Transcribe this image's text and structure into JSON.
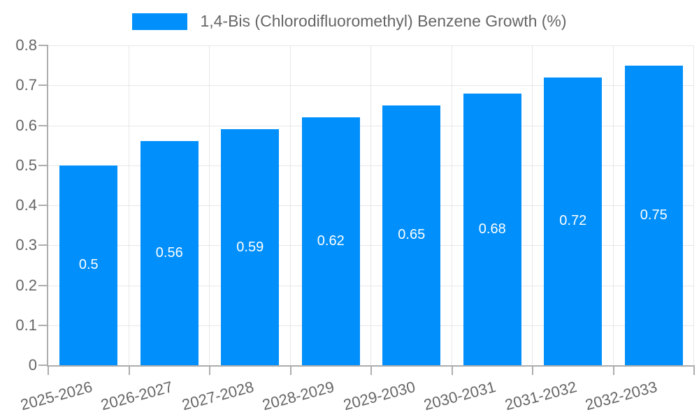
{
  "chart_data": {
    "type": "bar",
    "title": "1,4-Bis (Chlorodifluoromethyl) Benzene Growth (%)",
    "legend": {
      "label": "1,4-Bis (Chlorodifluoromethyl) Benzene Growth (%)",
      "marker_shape": "rect",
      "position": "top-center"
    },
    "categories": [
      "2025-2026",
      "2026-2027",
      "2027-2028",
      "2028-2029",
      "2029-2030",
      "2030-2031",
      "2031-2032",
      "2032-2033"
    ],
    "series": [
      {
        "name": "1,4-Bis (Chlorodifluoromethyl) Benzene Growth (%)",
        "values": [
          0.5,
          0.56,
          0.59,
          0.62,
          0.65,
          0.68,
          0.72,
          0.75
        ]
      }
    ],
    "value_labels": [
      "0.5",
      "0.56",
      "0.59",
      "0.62",
      "0.65",
      "0.68",
      "0.72",
      "0.75"
    ],
    "xlabel": "",
    "ylabel": "",
    "ylim": [
      0,
      0.8
    ],
    "ytick_step": 0.1,
    "ytick_labels": [
      "0",
      "0.1",
      "0.2",
      "0.3",
      "0.4",
      "0.5",
      "0.6",
      "0.7",
      "0.8"
    ],
    "grid": true,
    "x_label_rotation_deg": -15,
    "colors": {
      "bar": "#008FFB",
      "value_label": "#FFFFFF",
      "axis_text": "#666666",
      "gridline": "#E7E7E7",
      "axis_line": "#ADADAD",
      "background": "#FFFFFF"
    }
  }
}
